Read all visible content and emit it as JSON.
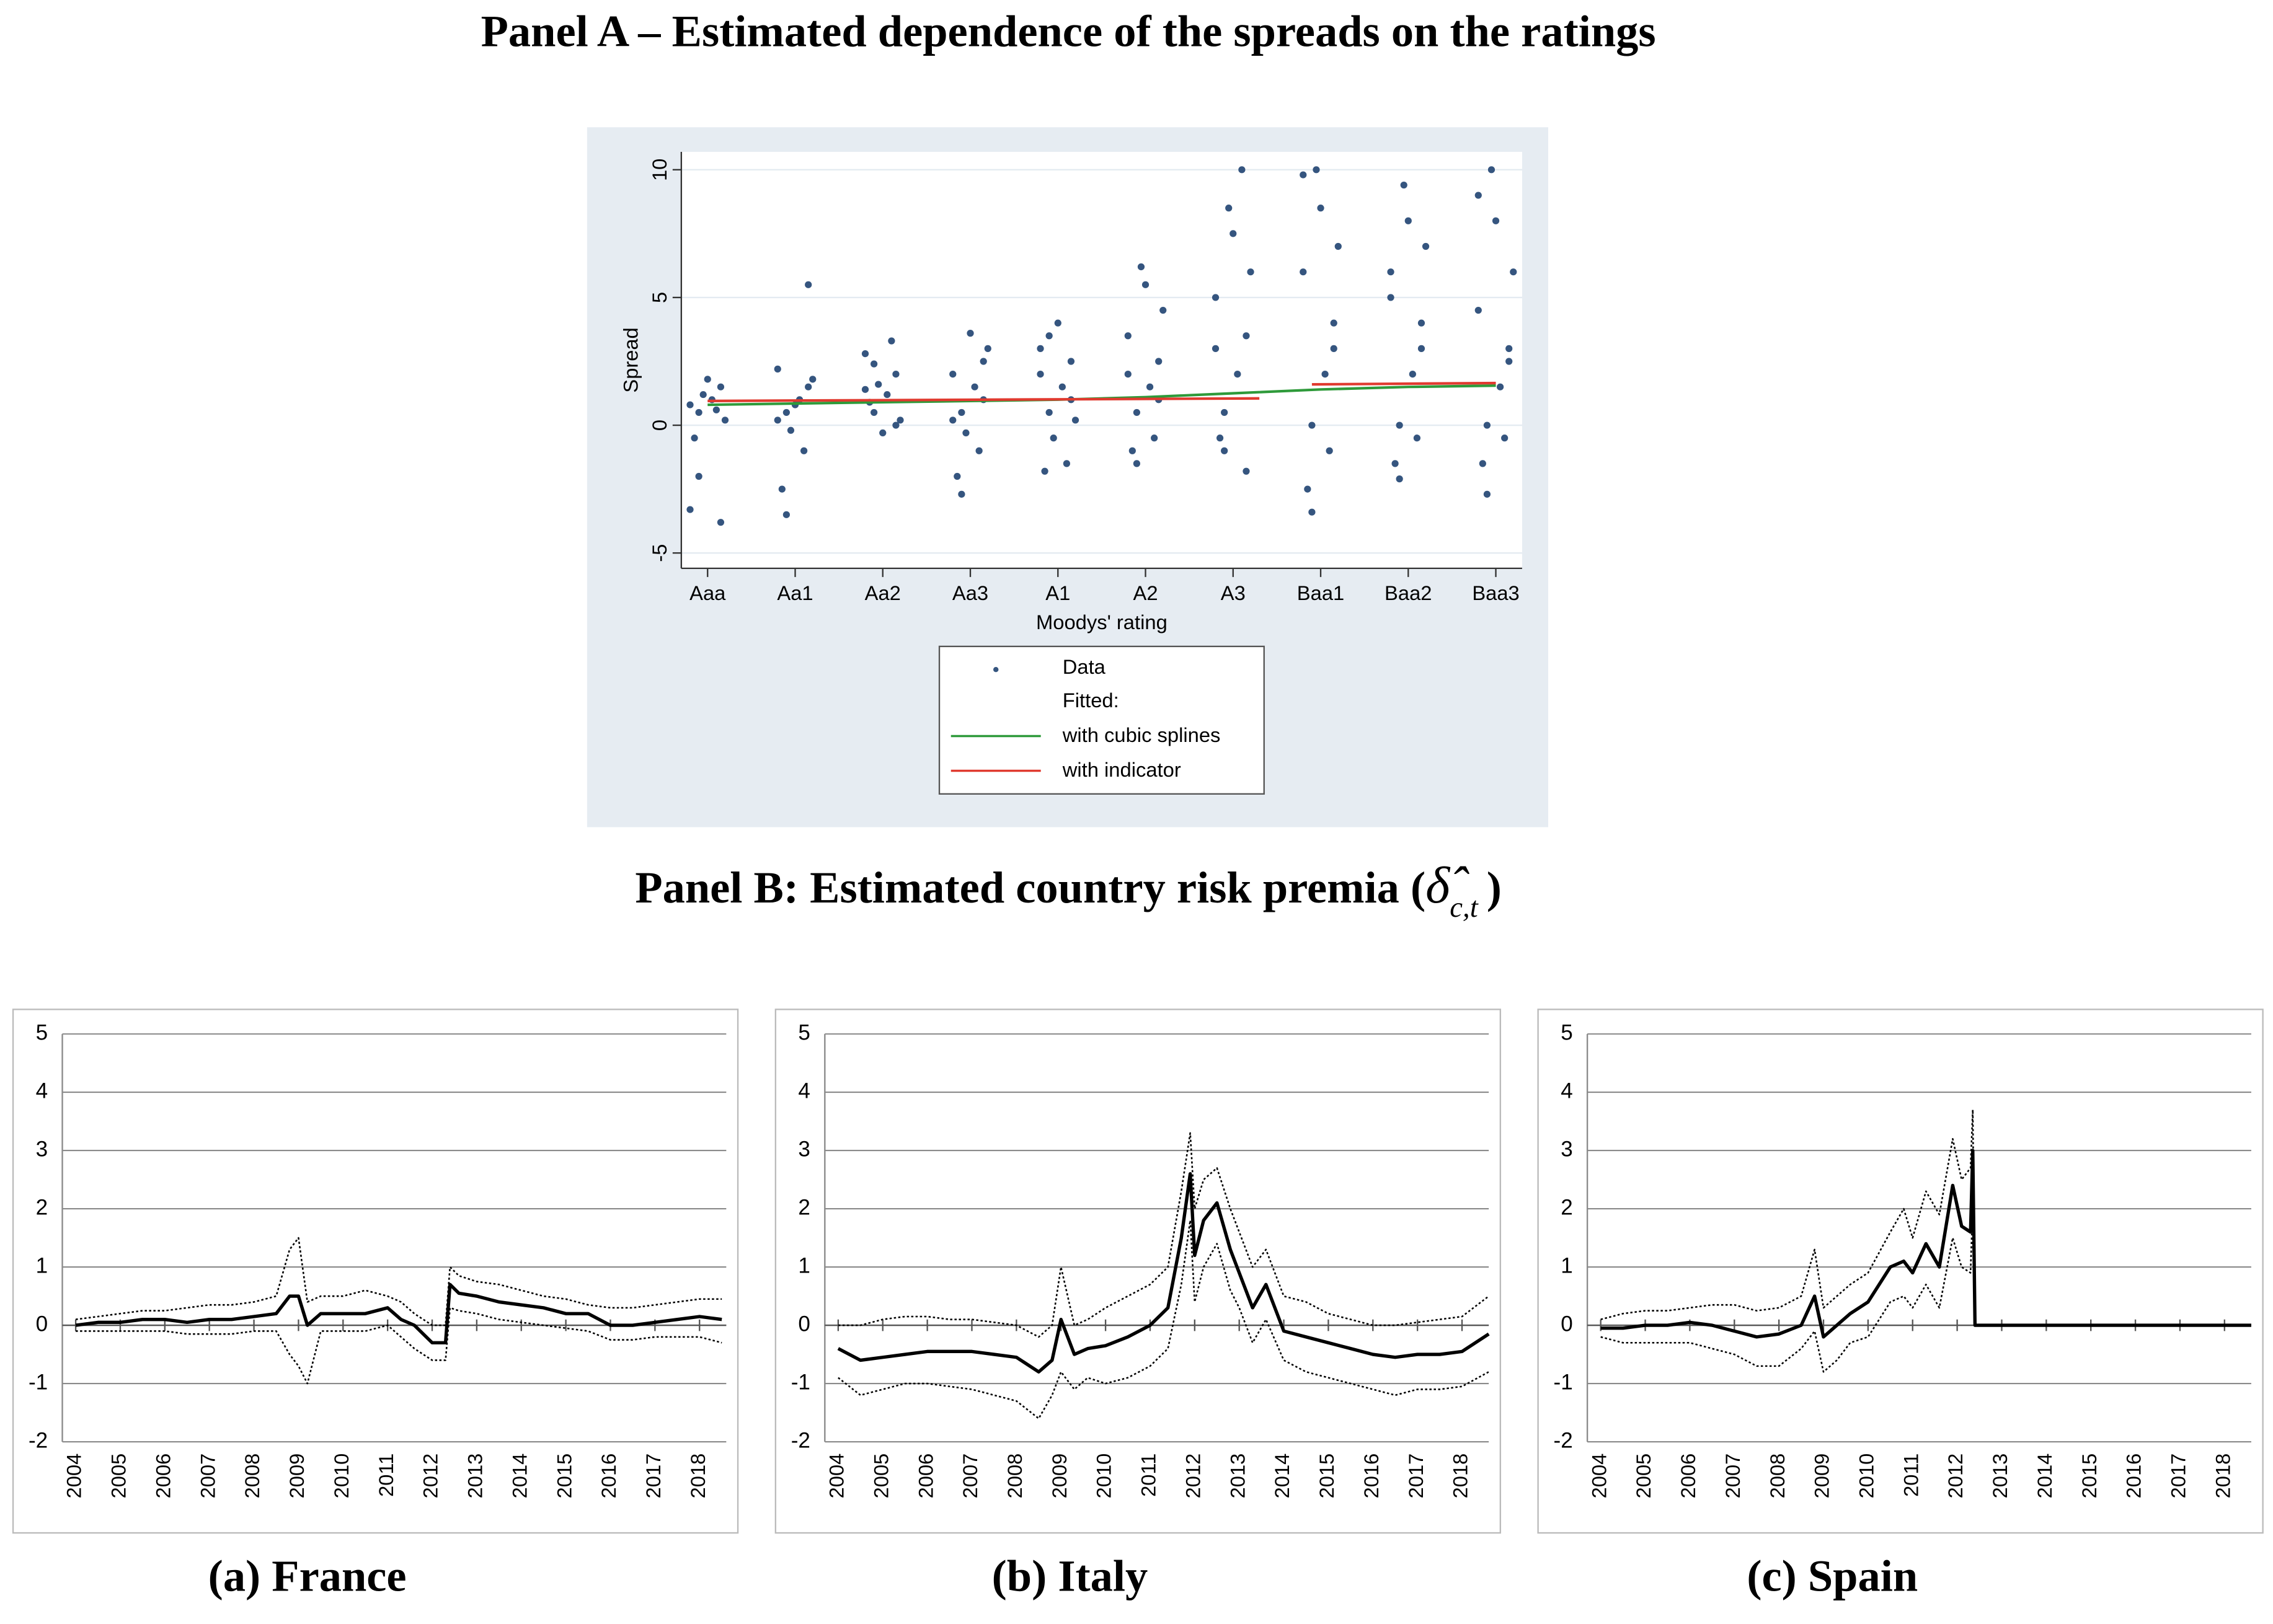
{
  "panel_a_title": "Panel A – Estimated dependence of the spreads on the ratings",
  "panel_b_title": {
    "text": "Panel B: Estimated country risk premia (",
    "symbol": "δ̂",
    "subscript": "c,t",
    "end": ")"
  },
  "chart_data": [
    {
      "type": "scatter",
      "xlabel": "Moodys' rating",
      "ylabel": "Spread",
      "xlim": [
        -0.3,
        9.3
      ],
      "ylim": [
        -5.6,
        10.7
      ],
      "xticks": [
        {
          "value": 0,
          "label": "Aaa"
        },
        {
          "value": 1,
          "label": "Aa1"
        },
        {
          "value": 2,
          "label": "Aa2"
        },
        {
          "value": 3,
          "label": "Aa3"
        },
        {
          "value": 4,
          "label": "A1"
        },
        {
          "value": 5,
          "label": "A2"
        },
        {
          "value": 6,
          "label": "A3"
        },
        {
          "value": 7,
          "label": "Baa1"
        },
        {
          "value": 8,
          "label": "Baa2"
        },
        {
          "value": 9,
          "label": "Baa3"
        }
      ],
      "yticks": [
        -5,
        0,
        5,
        10
      ],
      "grid": true,
      "legend_heading": "Fitted:",
      "series": [
        {
          "name": "Data",
          "color": "#35557f",
          "kind": "points",
          "x": [
            -0.1,
            0.05,
            0.15,
            -0.2,
            0.2,
            0,
            -0.05,
            0.1,
            -0.15,
            -0.1,
            0.15,
            -0.2,
            0.9,
            1.05,
            1.15,
            0.8,
            1.2,
            1,
            0.95,
            1.1,
            0.85,
            0.9,
            1.15,
            0.8,
            1.9,
            2.05,
            2.15,
            1.8,
            2.2,
            2,
            1.95,
            2.1,
            1.85,
            1.9,
            2.15,
            1.8,
            2.9,
            3.05,
            3.15,
            2.8,
            3.2,
            3,
            2.95,
            3.1,
            2.85,
            2.9,
            3.15,
            2.8,
            3.9,
            4.05,
            4.15,
            3.8,
            4.2,
            4,
            3.95,
            4.1,
            3.85,
            3.9,
            4.15,
            3.8,
            4.9,
            5.05,
            5.15,
            4.8,
            5.2,
            5,
            4.95,
            5.1,
            4.85,
            4.9,
            5.15,
            4.8,
            5.9,
            6.05,
            6.15,
            5.8,
            6.2,
            6,
            5.95,
            6.1,
            5.85,
            5.9,
            6.15,
            5.8,
            6.9,
            7.05,
            7.15,
            6.8,
            7.2,
            7,
            6.95,
            7.1,
            6.85,
            6.9,
            7.15,
            6.8,
            7.9,
            8.05,
            8.15,
            7.8,
            8.2,
            8,
            7.95,
            8.1,
            7.85,
            7.9,
            8.15,
            7.8,
            8.9,
            9.05,
            9.15,
            8.8,
            9.2,
            9,
            8.95,
            9.1,
            8.85,
            8.9,
            9.15,
            8.8
          ],
          "values": [
            0.5,
            1.0,
            1.5,
            0.8,
            0.2,
            1.8,
            1.2,
            0.6,
            -0.5,
            -2.0,
            -3.8,
            -3.3,
            0.5,
            1.0,
            1.5,
            0.2,
            1.8,
            0.8,
            -0.2,
            -1.0,
            -2.5,
            -3.5,
            5.5,
            2.2,
            0.5,
            1.2,
            2.0,
            2.8,
            0.2,
            -0.3,
            1.6,
            3.3,
            0.9,
            2.4,
            0,
            1.4,
            0.5,
            1.5,
            2.5,
            0.2,
            3.0,
            3.6,
            -0.3,
            -1.0,
            -2.0,
            -2.7,
            1.0,
            2.0,
            0.5,
            1.5,
            2.5,
            3.0,
            0.2,
            4.0,
            -0.5,
            -1.5,
            -1.8,
            3.5,
            1.0,
            2.0,
            0.5,
            1.5,
            2.5,
            3.5,
            4.5,
            5.5,
            6.2,
            -0.5,
            -1.0,
            -1.5,
            1.0,
            2.0,
            0.5,
            2,
            3.5,
            5,
            6,
            7.5,
            8.5,
            10,
            -0.5,
            -1.0,
            -1.8,
            3,
            0,
            2,
            4,
            6,
            7,
            8.5,
            10,
            -1,
            -2.5,
            -3.4,
            3,
            9.8,
            0,
            2,
            4,
            6,
            7,
            8,
            9.4,
            -0.5,
            -1.5,
            -2.1,
            3,
            5,
            0,
            1.5,
            3,
            4.5,
            6,
            8,
            10,
            -0.5,
            -1.5,
            -2.7,
            2.5,
            9
          ]
        },
        {
          "name": "with cubic splines",
          "color": "#2e9a3a",
          "kind": "line",
          "x": [
            0,
            1,
            2,
            3,
            4,
            5,
            6,
            7,
            8,
            9
          ],
          "values": [
            0.8,
            0.85,
            0.9,
            0.95,
            1.0,
            1.1,
            1.25,
            1.4,
            1.5,
            1.55
          ]
        },
        {
          "name": "with indicator",
          "color": "#e03a2f",
          "kind": "line",
          "x": [
            0,
            6.3,
            null,
            6.9,
            9
          ],
          "values": [
            0.95,
            1.05,
            null,
            1.6,
            1.65
          ]
        }
      ]
    },
    {
      "type": "line",
      "caption": "(a) France",
      "xlim": [
        2003.7,
        2018.6
      ],
      "ylim": [
        -2,
        5
      ],
      "xticks": [
        2004,
        2005,
        2006,
        2007,
        2008,
        2009,
        2010,
        2011,
        2012,
        2013,
        2014,
        2015,
        2016,
        2017,
        2018
      ],
      "yticks": [
        -2,
        -1,
        0,
        1,
        2,
        3,
        4,
        5
      ],
      "grid": true,
      "x": [
        2004,
        2004.5,
        2005,
        2005.5,
        2006,
        2006.5,
        2007,
        2007.5,
        2008,
        2008.5,
        2008.8,
        2009,
        2009.2,
        2009.5,
        2010,
        2010.5,
        2011,
        2011.3,
        2011.6,
        2012,
        2012.3,
        2012.4,
        2012.6,
        2013,
        2013.5,
        2014,
        2014.5,
        2015,
        2015.5,
        2016,
        2016.5,
        2017,
        2017.5,
        2018,
        2018.5
      ],
      "series": [
        {
          "color": "#000000",
          "style": "solid",
          "values": [
            0,
            0.05,
            0.05,
            0.1,
            0.1,
            0.05,
            0.1,
            0.1,
            0.15,
            0.2,
            0.5,
            0.5,
            0,
            0.2,
            0.2,
            0.2,
            0.3,
            0.1,
            0,
            -0.3,
            -0.3,
            0.7,
            0.55,
            0.5,
            0.4,
            0.35,
            0.3,
            0.2,
            0.2,
            0,
            0,
            0.05,
            0.1,
            0.15,
            0.1
          ]
        },
        {
          "color": "#000000",
          "style": "dotted",
          "values": [
            0.1,
            0.15,
            0.2,
            0.25,
            0.25,
            0.3,
            0.35,
            0.35,
            0.4,
            0.5,
            1.3,
            1.5,
            0.4,
            0.5,
            0.5,
            0.6,
            0.5,
            0.4,
            0.2,
            0,
            0,
            1.0,
            0.85,
            0.75,
            0.7,
            0.6,
            0.5,
            0.45,
            0.35,
            0.3,
            0.3,
            0.35,
            0.4,
            0.45,
            0.45
          ]
        },
        {
          "color": "#000000",
          "style": "dotted",
          "values": [
            -0.1,
            -0.1,
            -0.1,
            -0.1,
            -0.1,
            -0.15,
            -0.15,
            -0.15,
            -0.1,
            -0.1,
            -0.5,
            -0.7,
            -1.0,
            -0.1,
            -0.1,
            -0.1,
            0,
            -0.2,
            -0.4,
            -0.6,
            -0.6,
            0.3,
            0.25,
            0.2,
            0.1,
            0.05,
            0,
            -0.05,
            -0.1,
            -0.25,
            -0.25,
            -0.2,
            -0.2,
            -0.2,
            -0.3
          ]
        }
      ]
    },
    {
      "type": "line",
      "caption": "(b) Italy",
      "xlim": [
        2003.7,
        2018.6
      ],
      "ylim": [
        -2,
        5
      ],
      "xticks": [
        2004,
        2005,
        2006,
        2007,
        2008,
        2009,
        2010,
        2011,
        2012,
        2013,
        2014,
        2015,
        2016,
        2017,
        2018
      ],
      "yticks": [
        -2,
        -1,
        0,
        1,
        2,
        3,
        4,
        5
      ],
      "grid": true,
      "x": [
        2004,
        2004.5,
        2005,
        2005.5,
        2006,
        2006.5,
        2007,
        2007.5,
        2008,
        2008.5,
        2008.8,
        2009,
        2009.3,
        2009.6,
        2010,
        2010.5,
        2011,
        2011.4,
        2011.7,
        2011.9,
        2012,
        2012.2,
        2012.5,
        2012.8,
        2013,
        2013.3,
        2013.6,
        2014,
        2014.5,
        2015,
        2015.5,
        2016,
        2016.5,
        2017,
        2017.5,
        2018,
        2018.6
      ],
      "series": [
        {
          "color": "#000000",
          "style": "solid",
          "values": [
            -0.4,
            -0.6,
            -0.55,
            -0.5,
            -0.45,
            -0.45,
            -0.45,
            -0.5,
            -0.55,
            -0.8,
            -0.6,
            0.1,
            -0.5,
            -0.4,
            -0.35,
            -0.2,
            0,
            0.3,
            1.5,
            2.6,
            1.2,
            1.8,
            2.1,
            1.3,
            0.9,
            0.3,
            0.7,
            -0.1,
            -0.2,
            -0.3,
            -0.4,
            -0.5,
            -0.55,
            -0.5,
            -0.5,
            -0.45,
            -0.15
          ]
        },
        {
          "color": "#000000",
          "style": "dotted",
          "values": [
            0,
            0,
            0.1,
            0.15,
            0.15,
            0.1,
            0.1,
            0.05,
            0,
            -0.2,
            0,
            1.0,
            0,
            0.1,
            0.3,
            0.5,
            0.7,
            1.0,
            2.3,
            3.3,
            2.0,
            2.5,
            2.7,
            2.0,
            1.6,
            1.0,
            1.3,
            0.5,
            0.4,
            0.2,
            0.1,
            0,
            0,
            0.05,
            0.1,
            0.15,
            0.5
          ]
        },
        {
          "color": "#000000",
          "style": "dotted",
          "values": [
            -0.9,
            -1.2,
            -1.1,
            -1.0,
            -1.0,
            -1.05,
            -1.1,
            -1.2,
            -1.3,
            -1.6,
            -1.2,
            -0.8,
            -1.1,
            -0.9,
            -1.0,
            -0.9,
            -0.7,
            -0.4,
            0.7,
            1.8,
            0.4,
            1.0,
            1.4,
            0.6,
            0.3,
            -0.3,
            0.1,
            -0.6,
            -0.8,
            -0.9,
            -1.0,
            -1.1,
            -1.2,
            -1.1,
            -1.1,
            -1.05,
            -0.8
          ]
        }
      ]
    },
    {
      "type": "line",
      "caption": "(c) Spain",
      "xlim": [
        2003.7,
        2018.6
      ],
      "ylim": [
        -2,
        5
      ],
      "xticks": [
        2004,
        2005,
        2006,
        2007,
        2008,
        2009,
        2010,
        2011,
        2012,
        2013,
        2014,
        2015,
        2016,
        2017,
        2018
      ],
      "yticks": [
        -2,
        -1,
        0,
        1,
        2,
        3,
        4,
        5
      ],
      "grid": true,
      "x": [
        2004,
        2004.5,
        2005,
        2005.5,
        2006,
        2006.5,
        2007,
        2007.5,
        2008,
        2008.5,
        2008.8,
        2009,
        2009.3,
        2009.6,
        2010,
        2010.5,
        2010.8,
        2011,
        2011.3,
        2011.6,
        2011.9,
        2012.1,
        2012.3,
        2012.35,
        2012.4,
        2013,
        2014,
        2015,
        2016,
        2017,
        2018,
        2018.6
      ],
      "series": [
        {
          "color": "#000000",
          "style": "solid",
          "values": [
            -0.05,
            -0.05,
            0,
            0,
            0.05,
            0,
            -0.1,
            -0.2,
            -0.15,
            0,
            0.5,
            -0.2,
            0,
            0.2,
            0.4,
            1.0,
            1.1,
            0.9,
            1.4,
            1.0,
            2.4,
            1.7,
            1.6,
            3.0,
            0,
            0,
            0,
            0,
            0,
            0,
            0,
            0
          ]
        },
        {
          "color": "#000000",
          "style": "dotted",
          "values": [
            0.1,
            0.2,
            0.25,
            0.25,
            0.3,
            0.35,
            0.35,
            0.25,
            0.3,
            0.5,
            1.3,
            0.3,
            0.5,
            0.7,
            0.9,
            1.6,
            2.0,
            1.5,
            2.3,
            1.9,
            3.2,
            2.5,
            2.7,
            3.7,
            0,
            0,
            0,
            0,
            0,
            0,
            0,
            0
          ]
        },
        {
          "color": "#000000",
          "style": "dotted",
          "values": [
            -0.2,
            -0.3,
            -0.3,
            -0.3,
            -0.3,
            -0.4,
            -0.5,
            -0.7,
            -0.7,
            -0.4,
            -0.1,
            -0.8,
            -0.6,
            -0.3,
            -0.2,
            0.4,
            0.5,
            0.3,
            0.7,
            0.3,
            1.5,
            1.0,
            0.9,
            2.1,
            0,
            0,
            0,
            0,
            0,
            0,
            0,
            0
          ]
        }
      ]
    }
  ]
}
